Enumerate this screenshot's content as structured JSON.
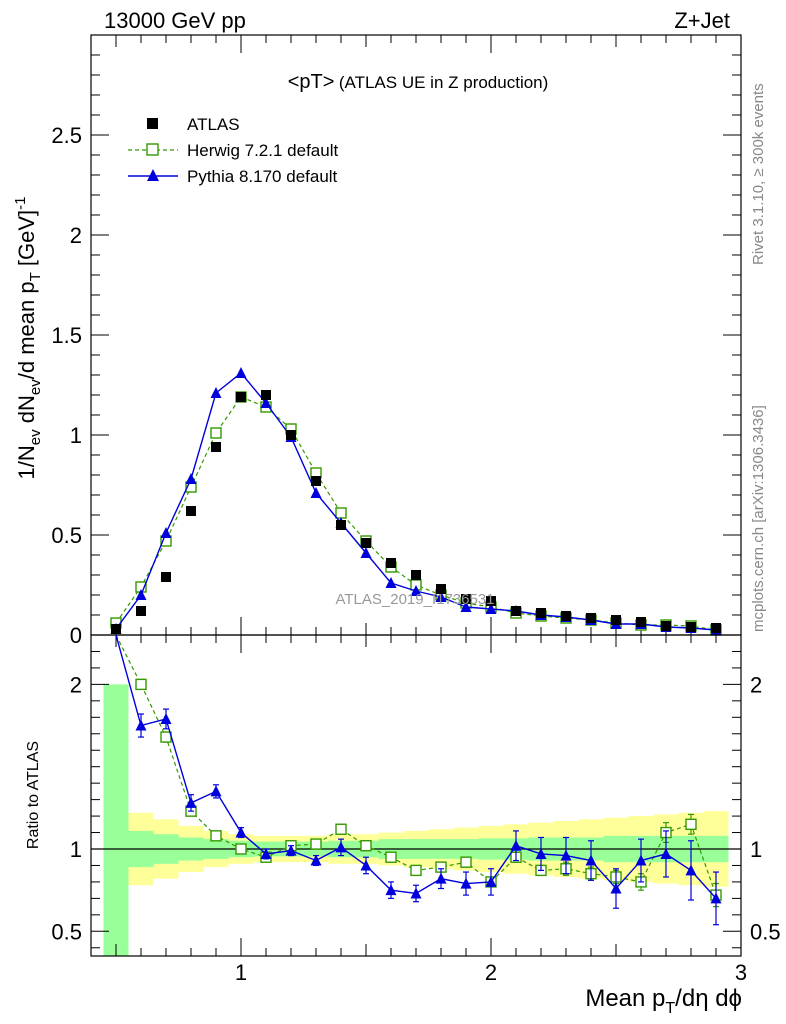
{
  "header": {
    "left": "13000 GeV pp",
    "right": "Z+Jet"
  },
  "side_labels": {
    "rivet": "Rivet 3.1.10, ≥ 300k events",
    "mcplots": "mcplots.cern.ch [arXiv:1306.3436]"
  },
  "watermark": "ATLAS_2019_I1736531",
  "colors": {
    "atlas": "#000000",
    "herwig": "#339900",
    "pythia": "#0000dd",
    "band_inner": "#99ff99",
    "band_outer": "#ffff99"
  },
  "chart_data": [
    {
      "type": "scatter",
      "panel": "main",
      "title_main": "<pT>",
      "title_sub": "(ATLAS UE in Z production)",
      "ylabel": "1/Nev dNev/d mean pT [GeV]-1",
      "ylabel_parts": {
        "a": "1/N",
        "a_sub": "ev",
        "b": " dN",
        "b_sub": "ev",
        "c": "/d mean p",
        "c_sub": "T",
        "d": " [GeV]",
        "d_sup": "-1"
      },
      "xlim": [
        0.4,
        3.0
      ],
      "ylim": [
        0,
        3.0
      ],
      "yticks": [
        "0",
        "0.5",
        "1",
        "1.5",
        "2",
        "2.5"
      ],
      "yticks_values": [
        0,
        0.5,
        1,
        1.5,
        2,
        2.5
      ],
      "legend": {
        "position": "top-left"
      },
      "x": [
        0.5,
        0.6,
        0.7,
        0.8,
        0.9,
        1.0,
        1.1,
        1.2,
        1.3,
        1.4,
        1.5,
        1.6,
        1.7,
        1.8,
        1.9,
        2.0,
        2.1,
        2.2,
        2.3,
        2.4,
        2.5,
        2.6,
        2.7,
        2.8,
        2.9
      ],
      "series": [
        {
          "name": "ATLAS",
          "style": "square",
          "values": [
            0.03,
            0.12,
            0.29,
            0.62,
            0.94,
            1.19,
            1.2,
            1.0,
            0.77,
            0.55,
            0.46,
            0.36,
            0.3,
            0.23,
            0.18,
            0.17,
            0.12,
            0.11,
            0.095,
            0.085,
            0.075,
            0.065,
            0.045,
            0.04,
            0.035
          ]
        },
        {
          "name": "Herwig 7.2.1 default",
          "style": "open-square-dashed",
          "values": [
            0.06,
            0.24,
            0.47,
            0.74,
            1.01,
            1.19,
            1.14,
            1.03,
            0.81,
            0.61,
            0.47,
            0.34,
            0.25,
            0.2,
            0.16,
            0.14,
            0.11,
            0.095,
            0.085,
            0.075,
            0.06,
            0.05,
            0.05,
            0.045,
            0.025
          ]
        },
        {
          "name": "Pythia 8.170 default",
          "style": "triangle-line",
          "values": [
            0.03,
            0.2,
            0.51,
            0.78,
            1.21,
            1.31,
            1.16,
            0.99,
            0.71,
            0.56,
            0.41,
            0.26,
            0.22,
            0.19,
            0.14,
            0.13,
            0.12,
            0.1,
            0.09,
            0.075,
            0.055,
            0.055,
            0.04,
            0.035,
            0.025
          ]
        }
      ]
    },
    {
      "type": "line",
      "panel": "ratio",
      "ylabel": "Ratio to ATLAS",
      "xlabel": "Mean pT/dη dϕ",
      "xlabel_parts": {
        "a": "Mean p",
        "a_sub": "T",
        "b": "/dη dϕ"
      },
      "xlim": [
        0.4,
        3.0
      ],
      "ylim": [
        0.35,
        2.3
      ],
      "xticks": [
        "1",
        "2",
        "3"
      ],
      "xticks_values": [
        1,
        2,
        3
      ],
      "yticks": [
        "0.5",
        "1",
        "2"
      ],
      "yticks_values": [
        0.5,
        1,
        2
      ],
      "reference_line": 1,
      "x": [
        0.5,
        0.6,
        0.7,
        0.8,
        0.9,
        1.0,
        1.1,
        1.2,
        1.3,
        1.4,
        1.5,
        1.6,
        1.7,
        1.8,
        1.9,
        2.0,
        2.1,
        2.2,
        2.3,
        2.4,
        2.5,
        2.6,
        2.7,
        2.8,
        2.9
      ],
      "band_inner_half": [
        1.0,
        0.11,
        0.09,
        0.07,
        0.06,
        0.05,
        0.045,
        0.045,
        0.045,
        0.05,
        0.05,
        0.06,
        0.06,
        0.06,
        0.06,
        0.065,
        0.065,
        0.07,
        0.07,
        0.07,
        0.08,
        0.08,
        0.08,
        0.08,
        0.08
      ],
      "band_outer_half": [
        1.0,
        0.22,
        0.18,
        0.14,
        0.11,
        0.09,
        0.08,
        0.08,
        0.08,
        0.09,
        0.09,
        0.1,
        0.11,
        0.12,
        0.13,
        0.14,
        0.15,
        0.16,
        0.17,
        0.18,
        0.19,
        0.2,
        0.21,
        0.22,
        0.23
      ],
      "series": [
        {
          "name": "Herwig 7.2.1 default",
          "style": "open-square-dashed",
          "values": [
            2.35,
            2.0,
            1.68,
            1.23,
            1.08,
            1.0,
            0.95,
            1.02,
            1.03,
            1.12,
            1.02,
            0.95,
            0.87,
            0.89,
            0.92,
            0.8,
            0.95,
            0.87,
            0.88,
            0.85,
            0.83,
            0.8,
            1.1,
            1.15,
            0.72
          ],
          "errors": [
            0,
            0.03,
            0.03,
            0.02,
            0.01,
            0.01,
            0.01,
            0.01,
            0.01,
            0.02,
            0.02,
            0.02,
            0.02,
            0.02,
            0.03,
            0.03,
            0.03,
            0.03,
            0.04,
            0.04,
            0.04,
            0.05,
            0.06,
            0.06,
            0.07
          ]
        },
        {
          "name": "Pythia 8.170 default",
          "style": "triangle-line",
          "values": [
            2.4,
            1.75,
            1.79,
            1.28,
            1.35,
            1.1,
            0.97,
            0.99,
            0.93,
            1.01,
            0.9,
            0.75,
            0.73,
            0.82,
            0.79,
            0.8,
            1.02,
            0.97,
            0.96,
            0.93,
            0.76,
            0.93,
            0.97,
            0.87,
            0.7
          ],
          "errors": [
            0,
            0.07,
            0.06,
            0.05,
            0.04,
            0.03,
            0.03,
            0.03,
            0.03,
            0.05,
            0.05,
            0.05,
            0.05,
            0.06,
            0.07,
            0.08,
            0.09,
            0.1,
            0.11,
            0.12,
            0.12,
            0.13,
            0.14,
            0.18,
            0.16
          ]
        }
      ]
    }
  ]
}
